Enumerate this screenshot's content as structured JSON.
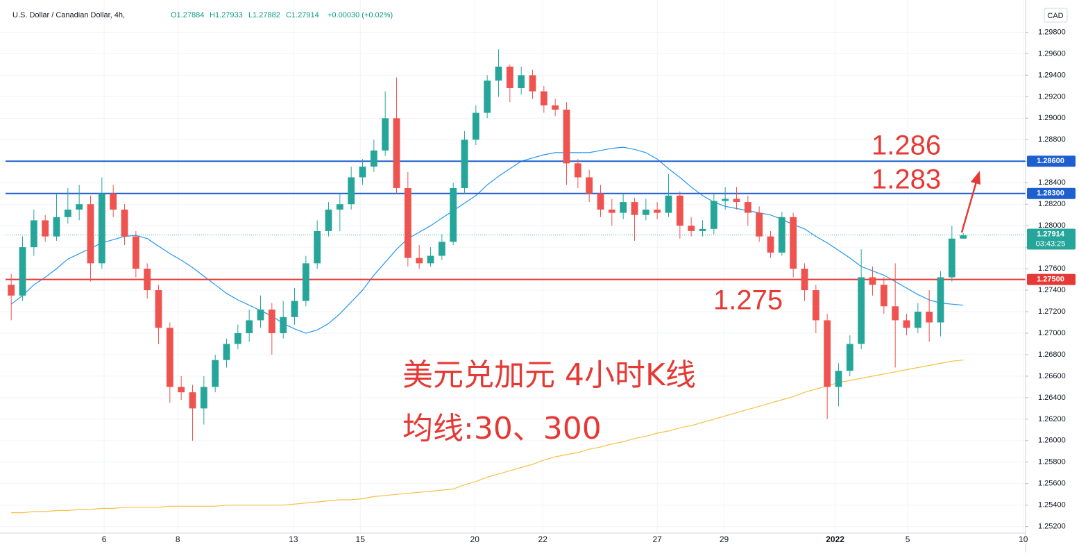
{
  "chart_data": {
    "type": "candlestick",
    "title": "U.S. Dollar / Canadian Dollar, 4h,",
    "header_values": [
      "O1.27884",
      "H1.27933",
      "L1.27882",
      "C1.27914",
      "+0.00030 (+0.02%)"
    ],
    "currency": "CAD",
    "up_color": "#26a69a",
    "down_color": "#ef5350",
    "xlim": [
      -0.5,
      89.5
    ],
    "xticks": [
      {
        "value": 8.2,
        "label": "6"
      },
      {
        "value": 14.7,
        "label": "8"
      },
      {
        "value": 24.9,
        "label": "13"
      },
      {
        "value": 30.8,
        "label": "15"
      },
      {
        "value": 40.9,
        "label": "20"
      },
      {
        "value": 46.9,
        "label": "22"
      },
      {
        "value": 57.0,
        "label": "27"
      },
      {
        "value": 62.9,
        "label": "29"
      },
      {
        "value": 72.7,
        "label": "2022"
      },
      {
        "value": 79.1,
        "label": "5"
      },
      {
        "value": 89.3,
        "label": "10"
      }
    ],
    "ylim": [
      1.2514,
      1.301
    ],
    "yticks": [
      {
        "value": 1.252,
        "label": "1.25200"
      },
      {
        "value": 1.254,
        "label": "1.25400"
      },
      {
        "value": 1.256,
        "label": "1.25600"
      },
      {
        "value": 1.258,
        "label": "1.25800"
      },
      {
        "value": 1.26,
        "label": "1.26000"
      },
      {
        "value": 1.262,
        "label": "1.26200"
      },
      {
        "value": 1.264,
        "label": "1.26400"
      },
      {
        "value": 1.266,
        "label": "1.26600"
      },
      {
        "value": 1.268,
        "label": "1.26800"
      },
      {
        "value": 1.27,
        "label": "1.27000"
      },
      {
        "value": 1.272,
        "label": "1.27200"
      },
      {
        "value": 1.274,
        "label": "1.27400"
      },
      {
        "value": 1.276,
        "label": "1.27600"
      },
      {
        "value": 1.278,
        "label": "1.27800"
      },
      {
        "value": 1.28,
        "label": "1.28000"
      },
      {
        "value": 1.282,
        "label": "1.28200"
      },
      {
        "value": 1.284,
        "label": "1.28400"
      },
      {
        "value": 1.286,
        "label": "1.28600"
      },
      {
        "value": 1.288,
        "label": "1.28800"
      },
      {
        "value": 1.29,
        "label": "1.29000"
      },
      {
        "value": 1.292,
        "label": "1.29200"
      },
      {
        "value": 1.294,
        "label": "1.29400"
      },
      {
        "value": 1.296,
        "label": "1.29600"
      },
      {
        "value": 1.298,
        "label": "1.29800"
      }
    ],
    "grid": true,
    "open": [
      1.2745,
      1.2735,
      1.278,
      1.2805,
      1.279,
      1.2808,
      1.2815,
      1.282,
      1.2765,
      1.283,
      1.2815,
      1.279,
      1.276,
      1.274,
      1.2705,
      1.265,
      1.2645,
      1.263,
      1.265,
      1.2675,
      1.269,
      1.27,
      1.2712,
      1.2722,
      1.27,
      1.2715,
      1.273,
      1.2765,
      1.2795,
      1.2815,
      1.282,
      1.2845,
      1.2855,
      1.287,
      1.29,
      1.2835,
      1.277,
      1.2765,
      1.2772,
      1.2785,
      1.2835,
      1.288,
      1.2905,
      1.2935,
      1.2948,
      1.2928,
      1.294,
      1.2925,
      1.2912,
      1.2908,
      1.2858,
      1.2845,
      1.283,
      1.2815,
      1.2812,
      1.2822,
      1.281,
      1.2815,
      1.2812,
      1.2828,
      1.28,
      1.2795,
      1.2797,
      1.2823,
      1.2825,
      1.2822,
      1.2812,
      1.279,
      1.2775,
      1.2808,
      1.276,
      1.274,
      1.2712,
      1.265,
      1.2665,
      1.269,
      1.2752,
      1.2745,
      1.2725,
      1.2712,
      1.2705,
      1.272,
      1.271,
      1.2752,
      1.2788
    ],
    "high": [
      1.2755,
      1.279,
      1.2815,
      1.281,
      1.283,
      1.2835,
      1.2838,
      1.2828,
      1.2845,
      1.2838,
      1.282,
      1.2795,
      1.2765,
      1.2745,
      1.271,
      1.266,
      1.2652,
      1.266,
      1.268,
      1.2695,
      1.2708,
      1.2722,
      1.2735,
      1.2728,
      1.273,
      1.2742,
      1.2772,
      1.2805,
      1.2822,
      1.283,
      1.2855,
      1.2862,
      1.288,
      1.2925,
      1.2938,
      1.285,
      1.2782,
      1.278,
      1.2792,
      1.284,
      1.2888,
      1.2912,
      1.294,
      1.2964,
      1.295,
      1.2948,
      1.2945,
      1.293,
      1.2918,
      1.2915,
      1.2862,
      1.2852,
      1.2838,
      1.2825,
      1.283,
      1.2826,
      1.2825,
      1.2822,
      1.2848,
      1.2832,
      1.2808,
      1.2805,
      1.283,
      1.2836,
      1.2836,
      1.2828,
      1.2818,
      1.2795,
      1.2813,
      1.2812,
      1.2765,
      1.2745,
      1.2718,
      1.2672,
      1.2698,
      1.2778,
      1.2762,
      1.2752,
      1.2765,
      1.2718,
      1.2728,
      1.274,
      1.2758,
      1.28,
      1.2793
    ],
    "low": [
      1.2712,
      1.273,
      1.2772,
      1.2785,
      1.2786,
      1.2802,
      1.2805,
      1.2748,
      1.276,
      1.2808,
      1.2782,
      1.2752,
      1.2732,
      1.269,
      1.2635,
      1.2638,
      1.26,
      1.2615,
      1.2645,
      1.2668,
      1.2685,
      1.2692,
      1.2705,
      1.268,
      1.2695,
      1.2708,
      1.2725,
      1.276,
      1.279,
      1.2795,
      1.2815,
      1.2838,
      1.285,
      1.2865,
      1.283,
      1.2762,
      1.276,
      1.2762,
      1.2768,
      1.2782,
      1.283,
      1.2875,
      1.29,
      1.292,
      1.2915,
      1.2922,
      1.2918,
      1.2905,
      1.2902,
      1.2838,
      1.2835,
      1.2822,
      1.2808,
      1.28,
      1.2806,
      1.2786,
      1.2805,
      1.2806,
      1.2808,
      1.2788,
      1.279,
      1.279,
      1.2792,
      1.2815,
      1.2815,
      1.28,
      1.2785,
      1.277,
      1.2772,
      1.2752,
      1.273,
      1.27,
      1.262,
      1.2632,
      1.266,
      1.2685,
      1.2735,
      1.2718,
      1.2668,
      1.2698,
      1.27,
      1.2692,
      1.2697,
      1.2748,
      1.2788
    ],
    "close": [
      1.2735,
      1.278,
      1.2805,
      1.279,
      1.2808,
      1.2815,
      1.282,
      1.2765,
      1.283,
      1.2815,
      1.279,
      1.276,
      1.274,
      1.2705,
      1.265,
      1.2645,
      1.263,
      1.265,
      1.2675,
      1.269,
      1.27,
      1.2712,
      1.2722,
      1.27,
      1.2715,
      1.273,
      1.2765,
      1.2795,
      1.2815,
      1.282,
      1.2845,
      1.2855,
      1.287,
      1.29,
      1.2835,
      1.277,
      1.2765,
      1.2772,
      1.2785,
      1.2835,
      1.288,
      1.2905,
      1.2935,
      1.2948,
      1.2928,
      1.294,
      1.2925,
      1.2912,
      1.2908,
      1.2858,
      1.2845,
      1.283,
      1.2815,
      1.2812,
      1.2822,
      1.281,
      1.2815,
      1.2812,
      1.2828,
      1.28,
      1.2795,
      1.2797,
      1.2823,
      1.2825,
      1.2822,
      1.2812,
      1.279,
      1.2775,
      1.2808,
      1.276,
      1.274,
      1.2712,
      1.265,
      1.2665,
      1.269,
      1.2752,
      1.2745,
      1.2725,
      1.2712,
      1.2705,
      1.272,
      1.271,
      1.2752,
      1.2788,
      1.2791
    ],
    "series": [
      {
        "color": "#2196f3",
        "values": [
          1.2727,
          1.2735,
          1.2745,
          1.2752,
          1.276,
          1.2769,
          1.2774,
          1.2779,
          1.2784,
          1.2787,
          1.279,
          1.2791,
          1.2788,
          1.2781,
          1.2774,
          1.2768,
          1.2761,
          1.2753,
          1.2745,
          1.2737,
          1.2731,
          1.2726,
          1.2721,
          1.2716,
          1.2709,
          1.2704,
          1.27,
          1.2703,
          1.2709,
          1.2718,
          1.2729,
          1.274,
          1.2754,
          1.2766,
          1.2778,
          1.2788,
          1.2794,
          1.28,
          1.2807,
          1.2814,
          1.2821,
          1.2828,
          1.2838,
          1.2846,
          1.2853,
          1.286,
          1.2863,
          1.2866,
          1.2868,
          1.2868,
          1.2868,
          1.2868,
          1.287,
          1.2872,
          1.2873,
          1.2871,
          1.2868,
          1.2862,
          1.2853,
          1.2845,
          1.2836,
          1.2828,
          1.2822,
          1.2818,
          1.2816,
          1.2814,
          1.2812,
          1.281,
          1.2806,
          1.2801,
          1.2797,
          1.279,
          1.2784,
          1.2777,
          1.277,
          1.2762,
          1.2758,
          1.2754,
          1.2748,
          1.2742,
          1.2736,
          1.2731,
          1.2728,
          1.2727,
          1.2726
        ]
      },
      {
        "color": "#f5c142",
        "values": [
          1.2533,
          1.2533,
          1.2534,
          1.2534,
          1.2535,
          1.2535,
          1.2536,
          1.2536,
          1.2537,
          1.2537,
          1.2538,
          1.2538,
          1.2538,
          1.2538,
          1.2539,
          1.2539,
          1.2539,
          1.2539,
          1.2539,
          1.254,
          1.254,
          1.254,
          1.254,
          1.254,
          1.254,
          1.2541,
          1.2542,
          1.2543,
          1.2544,
          1.2545,
          1.2545,
          1.2546,
          1.2548,
          1.2549,
          1.255,
          1.2551,
          1.2552,
          1.2553,
          1.2554,
          1.2555,
          1.2559,
          1.2562,
          1.2566,
          1.2569,
          1.2572,
          1.2575,
          1.2578,
          1.2582,
          1.2585,
          1.2587,
          1.2589,
          1.2592,
          1.2594,
          1.2597,
          1.2599,
          1.2602,
          1.2604,
          1.2607,
          1.2609,
          1.2612,
          1.2614,
          1.2617,
          1.262,
          1.2623,
          1.2626,
          1.2629,
          1.2632,
          1.2635,
          1.2638,
          1.2641,
          1.2645,
          1.2648,
          1.2651,
          1.2654,
          1.2656,
          1.2658,
          1.266,
          1.2662,
          1.2664,
          1.2666,
          1.2668,
          1.267,
          1.2672,
          1.2674,
          1.2675
        ]
      }
    ],
    "hlines": [
      {
        "value": 1.286,
        "label": "1.28600",
        "color": "#1e5fd0"
      },
      {
        "value": 1.283,
        "label": "1.28300",
        "color": "#1e5fd0"
      },
      {
        "value": 1.275,
        "label": "1.27500",
        "color": "#e53935"
      }
    ],
    "last_price": {
      "value": 1.27914,
      "label": "1.27914",
      "countdown": "03:43:25",
      "color": "#26a69a"
    },
    "annotations": [
      "1.286",
      "1.283",
      "1.275"
    ],
    "caption": [
      "美元兑加元 4小时K线",
      "均线:30、300"
    ]
  }
}
